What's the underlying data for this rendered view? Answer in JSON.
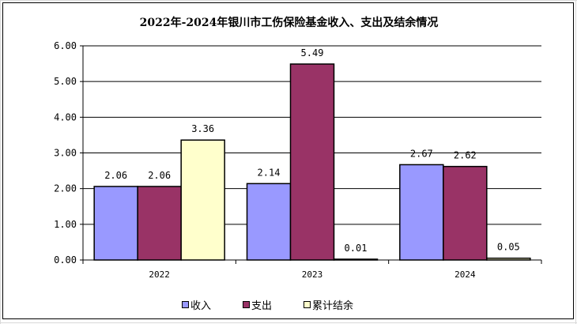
{
  "chart_data": {
    "type": "bar",
    "title": "2022年-2024年银川市工伤保险基金收入、支出及结余情况",
    "categories": [
      "2022",
      "2023",
      "2024"
    ],
    "series": [
      {
        "name": "收入",
        "values": [
          2.06,
          2.14,
          2.67
        ],
        "color": "#9999ff"
      },
      {
        "name": "支出",
        "values": [
          2.06,
          5.49,
          2.62
        ],
        "color": "#993366"
      },
      {
        "name": "累计结余",
        "values": [
          3.36,
          0.01,
          0.05
        ],
        "color": "#ffffcc"
      }
    ],
    "data_labels": [
      [
        "2.06",
        "2.14",
        "2.67"
      ],
      [
        "2.06",
        "5.49",
        "2.62"
      ],
      [
        "3.36",
        "0.01",
        "0.05"
      ]
    ],
    "y_ticks": [
      "0.00",
      "1.00",
      "2.00",
      "3.00",
      "4.00",
      "5.00",
      "6.00"
    ],
    "ylim": [
      0,
      6
    ],
    "grid": true,
    "legend_position": "bottom"
  }
}
